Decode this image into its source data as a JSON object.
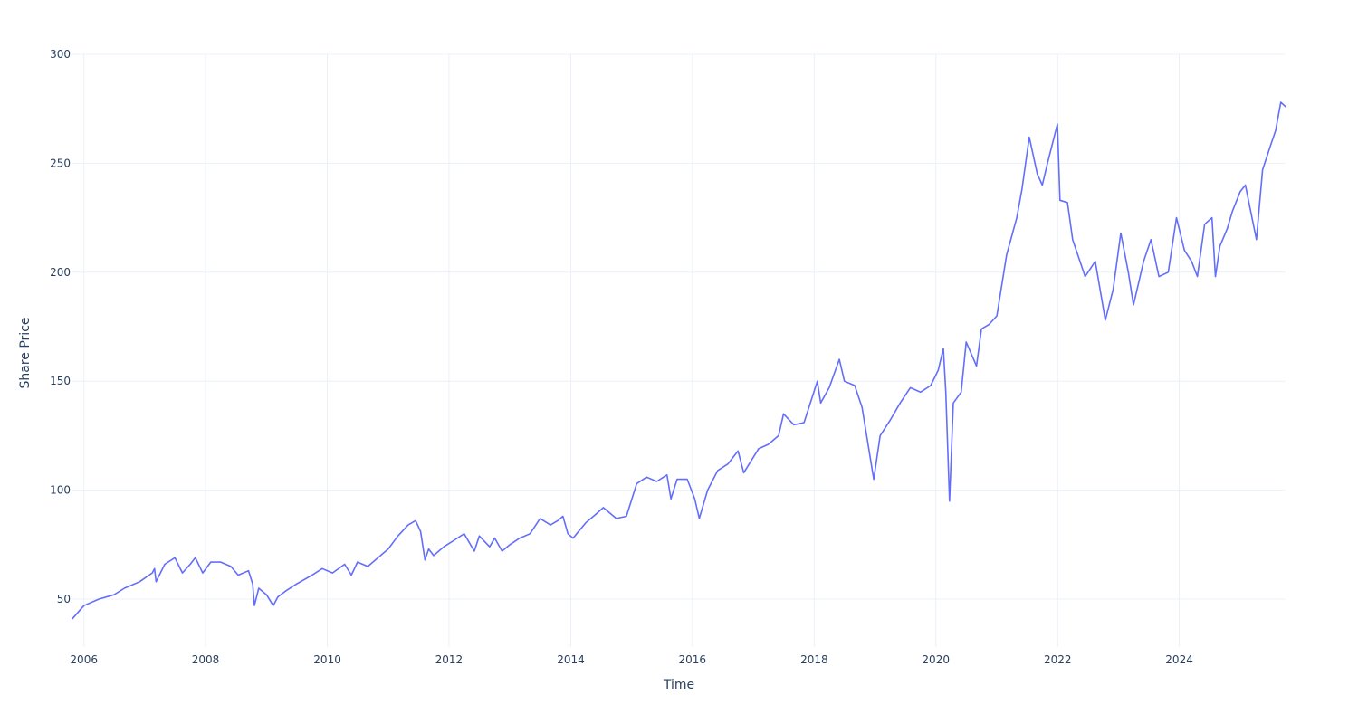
{
  "chart_data": {
    "type": "line",
    "title": "",
    "xlabel": "Time",
    "ylabel": "Share Price",
    "x_range": [
      "2005-10-24",
      "2025-09-30"
    ],
    "ylim": [
      28,
      300
    ],
    "x_ticks": [
      "2006",
      "2008",
      "2010",
      "2012",
      "2014",
      "2016",
      "2018",
      "2020",
      "2022",
      "2024"
    ],
    "y_ticks": [
      50,
      100,
      150,
      200,
      250,
      300
    ],
    "grid": true,
    "legend": "none",
    "colors": {
      "line": "#636efa",
      "grid": "#ebf0f8",
      "text": "#2a3f5f",
      "background": "#ffffff"
    },
    "series": [
      {
        "x": [
          "2005-10-24",
          "2006-01-01",
          "2006-04-01",
          "2006-07-01",
          "2006-09-01",
          "2006-12-01",
          "2007-02-15",
          "2007-03-01",
          "2007-03-10",
          "2007-05-01",
          "2007-07-01",
          "2007-08-15",
          "2007-10-01",
          "2007-11-01",
          "2007-12-15",
          "2008-02-01",
          "2008-04-01",
          "2008-06-01",
          "2008-07-15",
          "2008-09-15",
          "2008-10-10",
          "2008-10-20",
          "2008-11-15",
          "2009-01-01",
          "2009-02-10",
          "2009-03-10",
          "2009-05-01",
          "2009-07-01",
          "2009-10-01",
          "2009-12-01",
          "2010-02-01",
          "2010-04-15",
          "2010-05-25",
          "2010-07-01",
          "2010-09-01",
          "2010-11-01",
          "2011-01-01",
          "2011-03-01",
          "2011-05-01",
          "2011-06-15",
          "2011-07-15",
          "2011-08-10",
          "2011-09-01",
          "2011-10-01",
          "2011-12-01",
          "2012-02-01",
          "2012-04-01",
          "2012-06-01",
          "2012-07-01",
          "2012-09-01",
          "2012-10-01",
          "2012-11-15",
          "2013-01-01",
          "2013-03-01",
          "2013-05-01",
          "2013-07-01",
          "2013-09-01",
          "2013-10-15",
          "2013-11-15",
          "2013-12-15",
          "2014-01-15",
          "2014-04-01",
          "2014-06-01",
          "2014-07-15",
          "2014-10-01",
          "2014-12-01",
          "2015-02-01",
          "2015-04-01",
          "2015-06-01",
          "2015-08-01",
          "2015-08-25",
          "2015-10-01",
          "2015-12-01",
          "2016-01-15",
          "2016-02-11",
          "2016-04-01",
          "2016-06-01",
          "2016-08-01",
          "2016-10-01",
          "2016-11-04",
          "2016-12-15",
          "2017-02-01",
          "2017-04-01",
          "2017-06-01",
          "2017-07-01",
          "2017-09-01",
          "2017-11-01",
          "2018-01-20",
          "2018-02-09",
          "2018-04-01",
          "2018-06-01",
          "2018-07-01",
          "2018-09-01",
          "2018-10-15",
          "2018-12-24",
          "2019-02-01",
          "2019-04-01",
          "2019-06-01",
          "2019-08-01",
          "2019-10-01",
          "2019-12-01",
          "2020-01-15",
          "2020-02-15",
          "2020-03-01",
          "2020-03-23",
          "2020-04-15",
          "2020-06-01",
          "2020-07-01",
          "2020-09-01",
          "2020-10-01",
          "2020-11-15",
          "2021-01-01",
          "2021-03-01",
          "2021-05-01",
          "2021-06-01",
          "2021-07-15",
          "2021-09-01",
          "2021-10-01",
          "2021-11-01",
          "2021-12-31",
          "2022-01-15",
          "2022-03-01",
          "2022-04-01",
          "2022-06-15",
          "2022-08-15",
          "2022-10-14",
          "2022-11-30",
          "2023-01-15",
          "2023-03-01",
          "2023-04-01",
          "2023-06-01",
          "2023-07-15",
          "2023-09-01",
          "2023-10-27",
          "2023-12-15",
          "2024-02-01",
          "2024-03-15",
          "2024-04-19",
          "2024-06-01",
          "2024-07-15",
          "2024-08-05",
          "2024-09-01",
          "2024-10-15",
          "2024-11-15",
          "2025-01-01",
          "2025-02-01",
          "2025-04-08",
          "2025-05-15",
          "2025-07-01",
          "2025-08-01",
          "2025-09-01",
          "2025-09-30"
        ],
        "y": [
          41,
          47,
          50,
          52,
          55,
          58,
          62,
          64,
          58,
          66,
          69,
          62,
          66,
          69,
          62,
          67,
          67,
          65,
          61,
          63,
          57,
          47,
          55,
          52,
          47,
          51,
          54,
          57,
          61,
          64,
          62,
          66,
          61,
          67,
          65,
          69,
          73,
          79,
          84,
          86,
          81,
          68,
          73,
          70,
          74,
          77,
          80,
          72,
          79,
          74,
          78,
          72,
          75,
          78,
          80,
          87,
          84,
          86,
          88,
          80,
          78,
          85,
          89,
          92,
          87,
          88,
          103,
          106,
          104,
          107,
          96,
          105,
          105,
          96,
          87,
          100,
          109,
          112,
          118,
          108,
          113,
          119,
          121,
          125,
          135,
          130,
          131,
          150,
          140,
          147,
          160,
          150,
          148,
          138,
          105,
          125,
          132,
          140,
          147,
          145,
          148,
          155,
          165,
          145,
          95,
          140,
          145,
          168,
          157,
          174,
          176,
          180,
          208,
          225,
          238,
          262,
          245,
          240,
          250,
          268,
          233,
          232,
          215,
          198,
          205,
          178,
          192,
          218,
          200,
          185,
          205,
          215,
          198,
          200,
          225,
          210,
          205,
          198,
          222,
          225,
          198,
          212,
          220,
          228,
          237,
          240,
          215,
          247,
          258,
          265,
          278,
          276
        ]
      }
    ]
  }
}
